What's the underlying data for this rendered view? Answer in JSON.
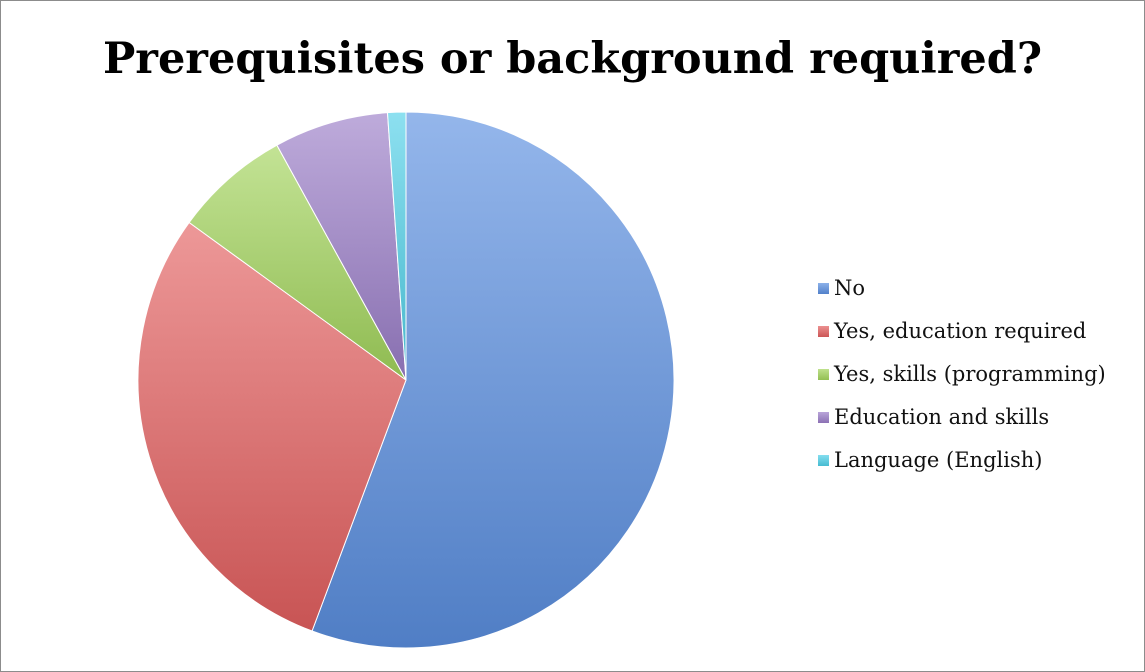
{
  "chart_data": {
    "type": "pie",
    "title": "Prerequisites or background required?",
    "categories": [
      "No",
      "Yes, education required",
      "Yes, skills (programming)",
      "Education and skills",
      "Language (English)"
    ],
    "values": [
      55.7,
      29.3,
      7.0,
      6.9,
      1.1
    ],
    "unit": "",
    "colors": [
      "#5b8fe0",
      "#e36060",
      "#a3d45c",
      "#9b7ec8",
      "#4fd0e8"
    ],
    "start_angle_deg": 0,
    "direction": "clockwise",
    "legend_position": "right"
  }
}
